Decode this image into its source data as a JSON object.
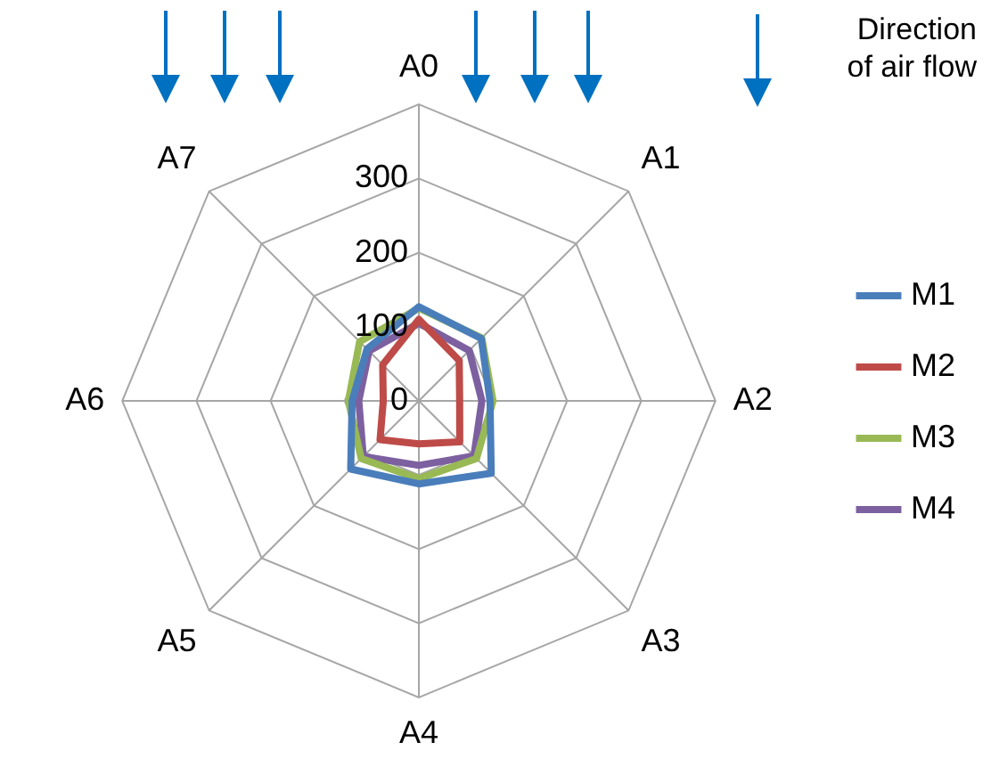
{
  "chart_data": {
    "type": "radar",
    "categories": [
      "A0",
      "A1",
      "A2",
      "A3",
      "A4",
      "A5",
      "A6",
      "A7"
    ],
    "series": [
      {
        "name": "M1",
        "color": "#4a7ebb",
        "values": [
          127,
          119,
          96,
          138,
          112,
          130,
          90,
          99
        ]
      },
      {
        "name": "M2",
        "color": "#be4b48",
        "values": [
          110,
          77,
          55,
          78,
          58,
          74,
          48,
          69
        ]
      },
      {
        "name": "M3",
        "color": "#98b954",
        "values": [
          125,
          120,
          100,
          110,
          105,
          110,
          95,
          113
        ]
      },
      {
        "name": "M4",
        "color": "#7d60a0",
        "values": [
          105,
          96,
          85,
          105,
          87,
          106,
          81,
          95
        ]
      }
    ],
    "ylim": [
      0,
      400
    ],
    "yticks": [
      0,
      100,
      200,
      300
    ],
    "grid": true,
    "legend": "right",
    "marker": "none",
    "annotations": [
      "Direction of air flow"
    ]
  }
}
